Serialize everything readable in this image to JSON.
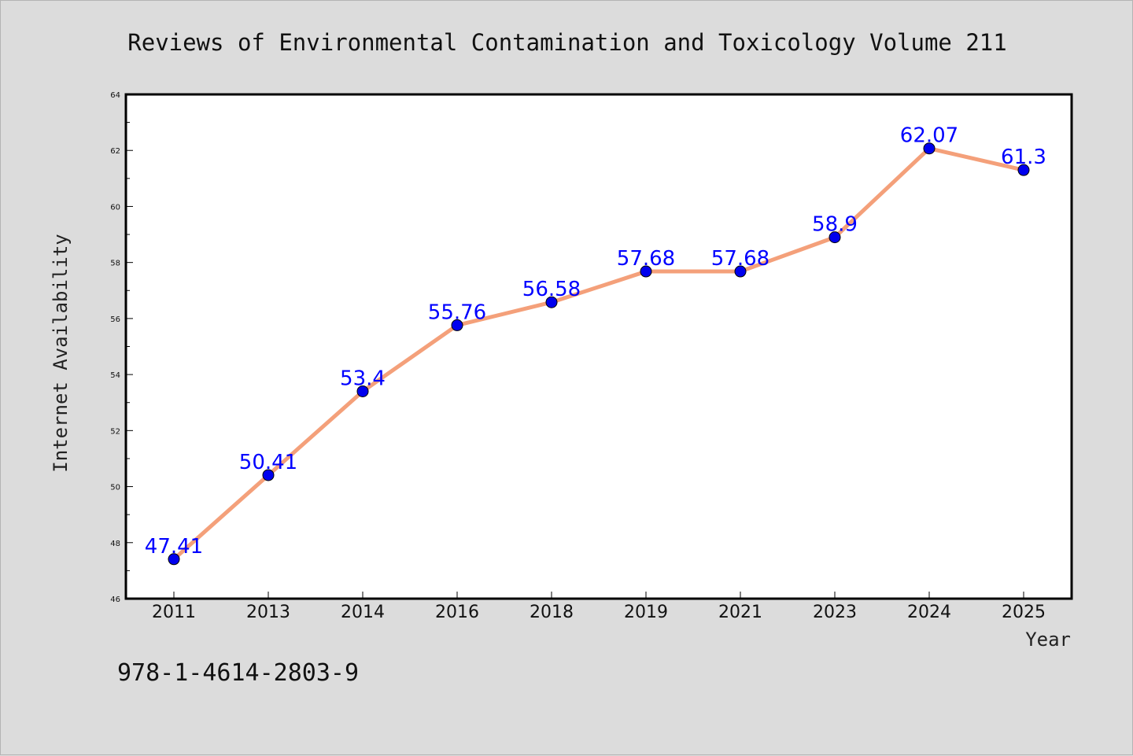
{
  "chart_data": {
    "type": "line",
    "title": "Reviews of Environmental Contamination and Toxicology Volume 211",
    "xlabel": "Year",
    "ylabel": "Internet Availability",
    "categories": [
      "2011",
      "2013",
      "2014",
      "2016",
      "2018",
      "2019",
      "2021",
      "2023",
      "2024",
      "2025"
    ],
    "series": [
      {
        "values": [
          47.41,
          50.41,
          53.4,
          55.76,
          56.58,
          57.68,
          57.68,
          58.9,
          62.07,
          61.3
        ],
        "data_labels": [
          "47.41",
          "50.41",
          "53.4",
          "55.76",
          "56.58",
          "57.68",
          "57.68",
          "58.9",
          "62.07",
          "61.3"
        ],
        "line_color": "#f4a07a",
        "marker_color": "#0000ee"
      }
    ],
    "ylim": [
      46,
      64
    ],
    "yticks": [
      "46",
      "48",
      "50",
      "52",
      "54",
      "56",
      "58",
      "60",
      "62",
      "64"
    ],
    "grid": false,
    "legend": "none"
  },
  "footer": {
    "isbn": "978-1-4614-2803-9"
  },
  "colors": {
    "background": "#dcdcdc",
    "plot_background": "#ffffff",
    "label": "#0000ff"
  }
}
